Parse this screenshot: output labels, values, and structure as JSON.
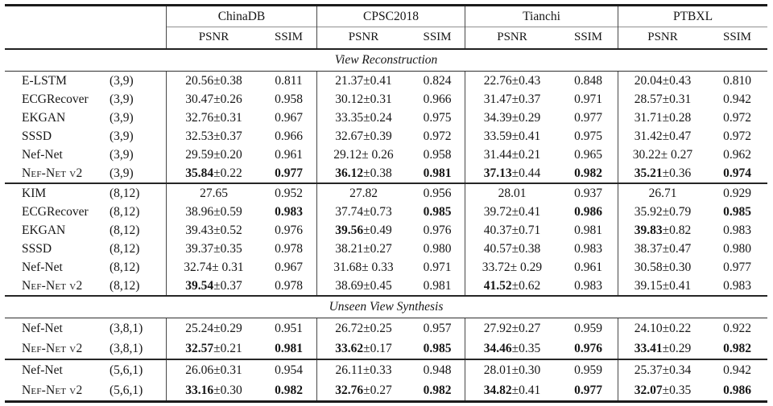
{
  "colors": {
    "background": "#ffffff",
    "text": "#161616",
    "rule_heavy": "#1b1b1b",
    "rule_medium": "#262626",
    "rule_light": "#8f8f8f",
    "column_bar": "#474747"
  },
  "table": {
    "col_groups": [
      "ChinaDB",
      "CPSC2018",
      "Tianchi",
      "PTBXL"
    ],
    "metrics": [
      "PSNR",
      "SSIM",
      "PSNR",
      "SSIM",
      "PSNR",
      "SSIM",
      "PSNR",
      "SSIM"
    ],
    "sections": [
      {
        "title": "View Reconstruction",
        "blocks": [
          {
            "rows": [
              {
                "method": "E-LSTM",
                "sc": false,
                "config": "(3,9)",
                "cells": [
                  [
                    "",
                    "20.56±0.38"
                  ],
                  [
                    "",
                    "0.811"
                  ],
                  [
                    "",
                    "21.37±0.41"
                  ],
                  [
                    "",
                    "0.824"
                  ],
                  [
                    "",
                    "22.76±0.43"
                  ],
                  [
                    "",
                    "0.848"
                  ],
                  [
                    "",
                    "20.04±0.43"
                  ],
                  [
                    "",
                    "0.810"
                  ]
                ]
              },
              {
                "method": "ECGRecover",
                "sc": false,
                "config": "(3,9)",
                "cells": [
                  [
                    "",
                    "30.47±0.26"
                  ],
                  [
                    "",
                    "0.958"
                  ],
                  [
                    "",
                    "30.12±0.31"
                  ],
                  [
                    "",
                    "0.966"
                  ],
                  [
                    "",
                    "31.47±0.37"
                  ],
                  [
                    "",
                    "0.971"
                  ],
                  [
                    "",
                    "28.57±0.31"
                  ],
                  [
                    "",
                    "0.942"
                  ]
                ]
              },
              {
                "method": "EKGAN",
                "sc": false,
                "config": "(3,9)",
                "cells": [
                  [
                    "",
                    "32.76±0.31"
                  ],
                  [
                    "",
                    "0.967"
                  ],
                  [
                    "",
                    "33.35±0.24"
                  ],
                  [
                    "",
                    "0.975"
                  ],
                  [
                    "",
                    "34.39±0.29"
                  ],
                  [
                    "",
                    "0.977"
                  ],
                  [
                    "",
                    "31.71±0.28"
                  ],
                  [
                    "",
                    "0.972"
                  ]
                ]
              },
              {
                "method": "SSSD",
                "sc": false,
                "config": "(3,9)",
                "cells": [
                  [
                    "",
                    "32.53±0.37"
                  ],
                  [
                    "",
                    "0.966"
                  ],
                  [
                    "",
                    "32.67±0.39"
                  ],
                  [
                    "",
                    "0.972"
                  ],
                  [
                    "",
                    "33.59±0.41"
                  ],
                  [
                    "",
                    "0.975"
                  ],
                  [
                    "",
                    "31.42±0.47"
                  ],
                  [
                    "",
                    "0.972"
                  ]
                ]
              },
              {
                "method": "Nef-Net",
                "sc": false,
                "config": "(3,9)",
                "cells": [
                  [
                    "",
                    "29.59±0.20"
                  ],
                  [
                    "",
                    "0.961"
                  ],
                  [
                    "",
                    "29.12± 0.26"
                  ],
                  [
                    "",
                    "0.958"
                  ],
                  [
                    "",
                    "31.44±0.21"
                  ],
                  [
                    "",
                    "0.965"
                  ],
                  [
                    "",
                    "30.22± 0.27"
                  ],
                  [
                    "",
                    "0.962"
                  ]
                ]
              },
              {
                "method": "Nef-Net v2",
                "sc": true,
                "config": "(3,9)",
                "cells": [
                  [
                    "35.84",
                    "±0.22"
                  ],
                  [
                    "0.977",
                    ""
                  ],
                  [
                    "36.12",
                    "±0.38"
                  ],
                  [
                    "0.981",
                    ""
                  ],
                  [
                    "37.13",
                    "±0.44"
                  ],
                  [
                    "0.982",
                    ""
                  ],
                  [
                    "35.21",
                    "±0.36"
                  ],
                  [
                    "0.974",
                    ""
                  ]
                ]
              }
            ]
          },
          {
            "rows": [
              {
                "method": "KIM",
                "sc": false,
                "config": "(8,12)",
                "cells": [
                  [
                    "",
                    "27.65"
                  ],
                  [
                    "",
                    "0.952"
                  ],
                  [
                    "",
                    "27.82"
                  ],
                  [
                    "",
                    "0.956"
                  ],
                  [
                    "",
                    "28.01"
                  ],
                  [
                    "",
                    "0.937"
                  ],
                  [
                    "",
                    "26.71"
                  ],
                  [
                    "",
                    "0.929"
                  ]
                ]
              },
              {
                "method": "ECGRecover",
                "sc": false,
                "config": "(8,12)",
                "cells": [
                  [
                    "",
                    "38.96±0.59"
                  ],
                  [
                    "0.983",
                    ""
                  ],
                  [
                    "",
                    "37.74±0.73"
                  ],
                  [
                    "0.985",
                    ""
                  ],
                  [
                    "",
                    "39.72±0.41"
                  ],
                  [
                    "0.986",
                    ""
                  ],
                  [
                    "",
                    "35.92±0.79"
                  ],
                  [
                    "0.985",
                    ""
                  ]
                ]
              },
              {
                "method": "EKGAN",
                "sc": false,
                "config": "(8,12)",
                "cells": [
                  [
                    "",
                    "39.43±0.52"
                  ],
                  [
                    "",
                    "0.976"
                  ],
                  [
                    "39.56",
                    "±0.49"
                  ],
                  [
                    "",
                    "0.976"
                  ],
                  [
                    "",
                    "40.37±0.71"
                  ],
                  [
                    "",
                    "0.981"
                  ],
                  [
                    "39.83",
                    "±0.82"
                  ],
                  [
                    "",
                    "0.983"
                  ]
                ]
              },
              {
                "method": "SSSD",
                "sc": false,
                "config": "(8,12)",
                "cells": [
                  [
                    "",
                    "39.37±0.35"
                  ],
                  [
                    "",
                    "0.978"
                  ],
                  [
                    "",
                    "38.21±0.27"
                  ],
                  [
                    "",
                    "0.980"
                  ],
                  [
                    "",
                    "40.57±0.38"
                  ],
                  [
                    "",
                    "0.983"
                  ],
                  [
                    "",
                    "38.37±0.47"
                  ],
                  [
                    "",
                    "0.980"
                  ]
                ]
              },
              {
                "method": "Nef-Net",
                "sc": false,
                "config": "(8,12)",
                "cells": [
                  [
                    "",
                    "32.74± 0.31"
                  ],
                  [
                    "",
                    "0.967"
                  ],
                  [
                    "",
                    "31.68± 0.33"
                  ],
                  [
                    "",
                    "0.971"
                  ],
                  [
                    "",
                    "33.72± 0.29"
                  ],
                  [
                    "",
                    "0.961"
                  ],
                  [
                    "",
                    "30.58±0.30"
                  ],
                  [
                    "",
                    "0.977"
                  ]
                ]
              },
              {
                "method": "Nef-Net v2",
                "sc": true,
                "config": "(8,12)",
                "cells": [
                  [
                    "39.54",
                    "±0.37"
                  ],
                  [
                    "",
                    "0.978"
                  ],
                  [
                    "",
                    "38.69±0.45"
                  ],
                  [
                    "",
                    "0.981"
                  ],
                  [
                    "41.52",
                    "±0.62"
                  ],
                  [
                    "",
                    "0.983"
                  ],
                  [
                    "",
                    "39.15±0.41"
                  ],
                  [
                    "",
                    "0.983"
                  ]
                ]
              }
            ]
          }
        ]
      },
      {
        "title": "Unseen View Synthesis",
        "blocks": [
          {
            "rows": [
              {
                "method": "Nef-Net",
                "sc": false,
                "config": "(3,8,1)",
                "cells": [
                  [
                    "",
                    "25.24±0.29"
                  ],
                  [
                    "",
                    "0.951"
                  ],
                  [
                    "",
                    "26.72±0.25"
                  ],
                  [
                    "",
                    "0.957"
                  ],
                  [
                    "",
                    "27.92±0.27"
                  ],
                  [
                    "",
                    "0.959"
                  ],
                  [
                    "",
                    "24.10±0.22"
                  ],
                  [
                    "",
                    "0.922"
                  ]
                ]
              },
              {
                "method": "Nef-Net v2",
                "sc": true,
                "config": "(3,8,1)",
                "cells": [
                  [
                    "32.57",
                    "±0.21"
                  ],
                  [
                    "0.981",
                    ""
                  ],
                  [
                    "33.62",
                    "±0.17"
                  ],
                  [
                    "0.985",
                    ""
                  ],
                  [
                    "34.46",
                    "±0.35"
                  ],
                  [
                    "0.976",
                    ""
                  ],
                  [
                    "33.41",
                    "±0.29"
                  ],
                  [
                    "0.982",
                    ""
                  ]
                ]
              }
            ]
          },
          {
            "rows": [
              {
                "method": "Nef-Net",
                "sc": false,
                "config": "(5,6,1)",
                "cells": [
                  [
                    "",
                    "26.06±0.31"
                  ],
                  [
                    "",
                    "0.954"
                  ],
                  [
                    "",
                    "26.11±0.33"
                  ],
                  [
                    "",
                    "0.948"
                  ],
                  [
                    "",
                    "28.01±0.30"
                  ],
                  [
                    "",
                    "0.959"
                  ],
                  [
                    "",
                    "25.37±0.34"
                  ],
                  [
                    "",
                    "0.942"
                  ]
                ]
              },
              {
                "method": "Nef-Net v2",
                "sc": true,
                "config": "(5,6,1)",
                "cells": [
                  [
                    "33.16",
                    "±0.30"
                  ],
                  [
                    "0.982",
                    ""
                  ],
                  [
                    "32.76",
                    "±0.27"
                  ],
                  [
                    "0.982",
                    ""
                  ],
                  [
                    "34.82",
                    "±0.41"
                  ],
                  [
                    "0.977",
                    ""
                  ],
                  [
                    "32.07",
                    "±0.35"
                  ],
                  [
                    "0.986",
                    ""
                  ]
                ]
              }
            ]
          }
        ]
      }
    ]
  }
}
